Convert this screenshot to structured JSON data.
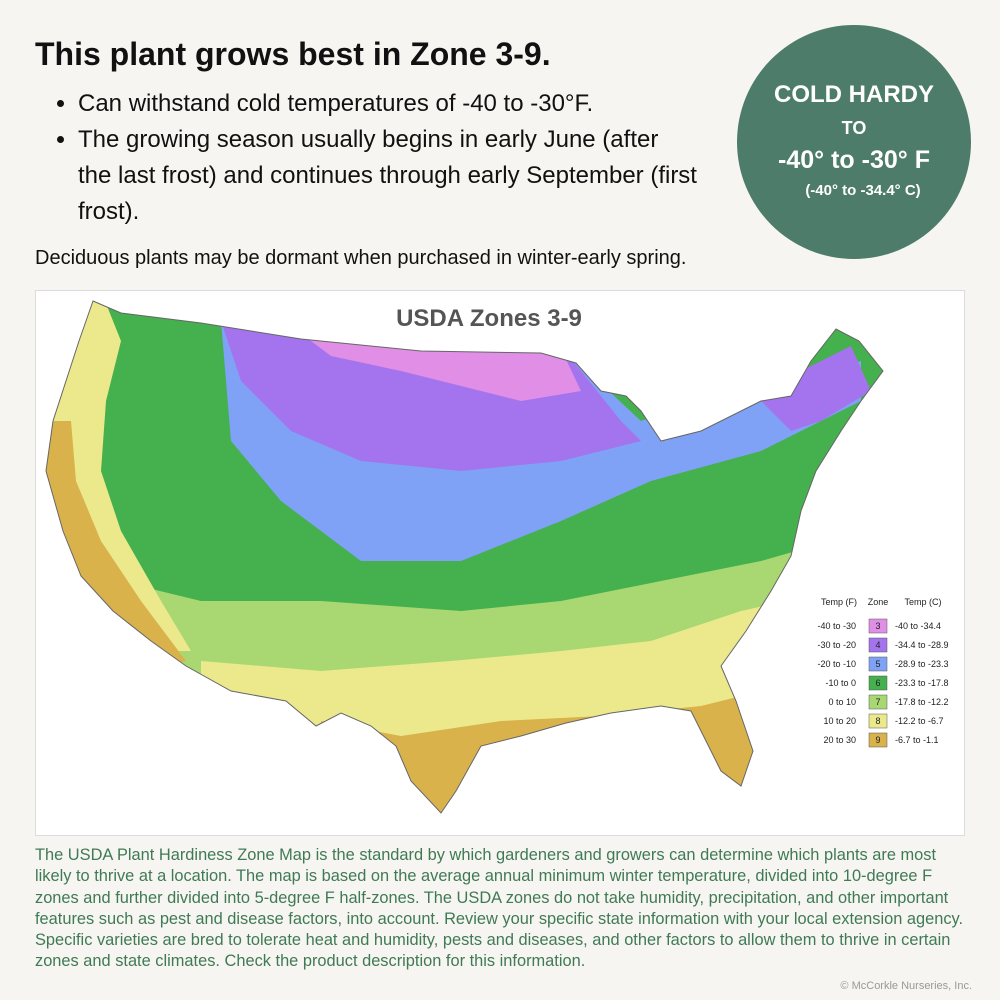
{
  "header": {
    "title": "This plant grows best in Zone 3-9.",
    "bullets": [
      "Can withstand cold temperatures of -40 to -30°F.",
      "The growing season usually begins in early June (after the last frost) and continues through early September (first frost)."
    ]
  },
  "badge": {
    "line1": "COLD HARDY",
    "line2": "TO",
    "line3": "-40° to -30° F",
    "line4": "(-40° to -34.4° C)"
  },
  "note": "Deciduous plants may be dormant when purchased in winter-early spring.",
  "map": {
    "title": "USDA Zones 3-9",
    "legend": {
      "headers": [
        "Temp (F)",
        "Zone",
        "Temp (C)"
      ],
      "rows": [
        {
          "temp_f": "-40 to -30",
          "zone": "3",
          "temp_c": "-40 to -34.4",
          "color": "#e08ee6"
        },
        {
          "temp_f": "-30 to -20",
          "zone": "4",
          "temp_c": "-34.4 to -28.9",
          "color": "#a374ee"
        },
        {
          "temp_f": "-20 to -10",
          "zone": "5",
          "temp_c": "-28.9 to -23.3",
          "color": "#80a2f6"
        },
        {
          "temp_f": "-10 to 0",
          "zone": "6",
          "temp_c": "-23.3 to -17.8",
          "color": "#44b04e"
        },
        {
          "temp_f": "0 to 10",
          "zone": "7",
          "temp_c": "-17.8 to -12.2",
          "color": "#a9d872"
        },
        {
          "temp_f": "10 to 20",
          "zone": "8",
          "temp_c": "-12.2 to -6.7",
          "color": "#ece98c"
        },
        {
          "temp_f": "20 to 30",
          "zone": "9",
          "temp_c": "-6.7 to -1.1",
          "color": "#dab24c"
        }
      ]
    }
  },
  "description": "The USDA Plant Hardiness Zone Map is the standard by which gardeners and growers can determine which plants are most likely to thrive at a location. The map is based on the average annual minimum winter temperature, divided into 10-degree F zones and further divided into 5-degree F half-zones. The USDA zones do not take humidity, precipitation, and other important features such as pest and disease factors, into account. Review your specific state information with your local extension agency. Specific varieties are bred to tolerate heat and humidity, pests and diseases, and other factors to allow them to thrive in certain zones and state climates. Check the product description for this information.",
  "copyright": "© McCorkle Nurseries, Inc."
}
